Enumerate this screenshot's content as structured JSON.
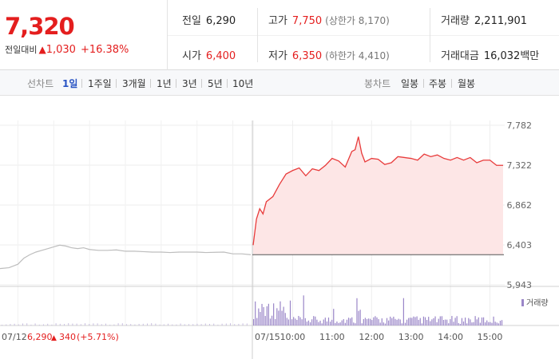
{
  "quote": {
    "price": "7,320",
    "change_label": "전일대비",
    "change_arrow": "▲",
    "change_amount": "1,030",
    "change_rate": "+16.38%"
  },
  "stats": {
    "prev_close": {
      "label": "전일",
      "value": "6,290"
    },
    "open": {
      "label": "시가",
      "value": "6,400"
    },
    "high": {
      "label": "고가",
      "value": "7,750",
      "sub": "(상한가 8,170)"
    },
    "low": {
      "label": "저가",
      "value": "6,350",
      "sub": "(하한가 4,410)"
    },
    "volume": {
      "label": "거래량",
      "value": "2,211,901"
    },
    "turnover": {
      "label": "거래대금",
      "value": "16,032",
      "unit": "백만"
    }
  },
  "tabs": {
    "line_label": "선차트",
    "line_periods": [
      "1일",
      "1주일",
      "3개월",
      "1년",
      "3년",
      "5년",
      "10년"
    ],
    "active_period": "1일",
    "candle_label": "봉차트",
    "candle_periods": [
      "일봉",
      "주봉",
      "월봉"
    ]
  },
  "chart_data": {
    "type": "line",
    "title": "",
    "ylabel": "",
    "ylim": [
      5943,
      7782
    ],
    "y_ticks": [
      "7,782",
      "7,322",
      "6,862",
      "6,403",
      "5,943"
    ],
    "x_ticks": [
      "07/15",
      "10:00",
      "11:00",
      "12:00",
      "13:00",
      "14:00",
      "15:00"
    ],
    "prev_day_label": {
      "date": "07/12",
      "close": "6,290",
      "arrow": "▲",
      "change": "340",
      "rate": "(+5.71%)"
    },
    "volume_legend": "거래량",
    "series": [
      {
        "name": "07/12",
        "color": "#bdbdbd",
        "x": [
          "08:30",
          "08:45",
          "09:00",
          "09:10",
          "09:20",
          "09:30",
          "09:40",
          "09:50",
          "10:00",
          "10:10",
          "10:20",
          "10:30",
          "10:40",
          "10:50",
          "11:00",
          "11:15",
          "11:30",
          "11:45",
          "12:00",
          "12:15",
          "12:30",
          "12:45",
          "13:00",
          "13:15",
          "13:30",
          "13:45",
          "14:00",
          "14:15",
          "14:30",
          "14:45",
          "15:00",
          "15:15",
          "15:30"
        ],
        "values": [
          6130,
          6140,
          6180,
          6250,
          6290,
          6320,
          6340,
          6360,
          6380,
          6400,
          6390,
          6370,
          6360,
          6370,
          6350,
          6340,
          6340,
          6345,
          6330,
          6330,
          6325,
          6320,
          6320,
          6315,
          6320,
          6320,
          6320,
          6315,
          6318,
          6320,
          6300,
          6300,
          6290
        ]
      },
      {
        "name": "07/15",
        "color": "#e83b3b",
        "fill": "#fde6e6",
        "baseline": 6290,
        "x": [
          "09:00",
          "09:05",
          "09:10",
          "09:15",
          "09:20",
          "09:30",
          "09:40",
          "09:50",
          "10:00",
          "10:10",
          "10:20",
          "10:30",
          "10:40",
          "10:50",
          "11:00",
          "11:10",
          "11:20",
          "11:30",
          "11:35",
          "11:40",
          "11:45",
          "11:50",
          "12:00",
          "12:10",
          "12:20",
          "12:30",
          "12:40",
          "12:50",
          "13:00",
          "13:10",
          "13:20",
          "13:30",
          "13:40",
          "13:50",
          "14:00",
          "14:10",
          "14:20",
          "14:30",
          "14:40",
          "14:50",
          "15:00",
          "15:10",
          "15:20"
        ],
        "values": [
          6400,
          6700,
          6820,
          6760,
          6900,
          6960,
          7100,
          7220,
          7260,
          7290,
          7200,
          7280,
          7260,
          7320,
          7400,
          7370,
          7300,
          7480,
          7500,
          7650,
          7460,
          7360,
          7400,
          7390,
          7330,
          7350,
          7420,
          7410,
          7400,
          7380,
          7450,
          7420,
          7440,
          7400,
          7380,
          7410,
          7380,
          7410,
          7350,
          7380,
          7380,
          7320,
          7320
        ]
      }
    ],
    "volume_color": "#9a86c8"
  }
}
